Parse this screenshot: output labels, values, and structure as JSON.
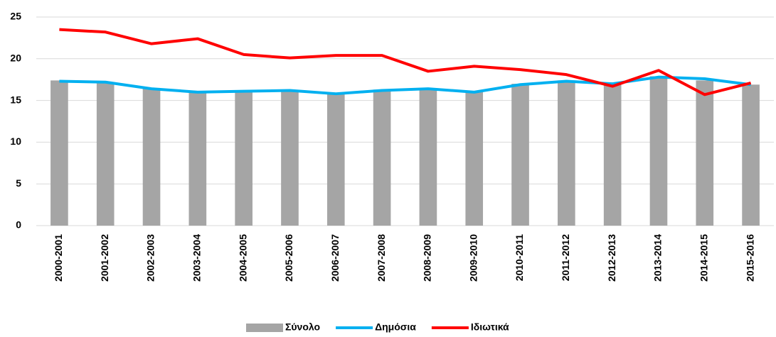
{
  "chart_data": {
    "type": "bar-line",
    "categories": [
      "2000-2001",
      "2001-2002",
      "2002-2003",
      "2003-2004",
      "2004-2005",
      "2005-2006",
      "2006-2007",
      "2007-2008",
      "2008-2009",
      "2009-2010",
      "2010-2011",
      "2011-2012",
      "2012-2013",
      "2013-2014",
      "2014-2015",
      "2015-2016"
    ],
    "series": [
      {
        "name": "Σύνολο",
        "type": "bar",
        "color": "#a5a5a5",
        "values": [
          17.4,
          17.2,
          16.5,
          16.1,
          16.1,
          16.2,
          15.9,
          16.3,
          16.4,
          16.1,
          17.0,
          17.4,
          17.1,
          17.9,
          17.4,
          16.9
        ]
      },
      {
        "name": "Δημόσια",
        "type": "line",
        "color": "#00b0f0",
        "values": [
          17.3,
          17.2,
          16.4,
          16.0,
          16.1,
          16.2,
          15.8,
          16.2,
          16.4,
          16.0,
          16.9,
          17.3,
          17.0,
          17.8,
          17.6,
          16.9
        ]
      },
      {
        "name": "Ιδιωτικά",
        "type": "line",
        "color": "#ff0000",
        "values": [
          23.5,
          23.2,
          21.8,
          22.4,
          20.5,
          20.1,
          20.4,
          20.4,
          18.5,
          19.1,
          18.7,
          18.1,
          16.7,
          18.6,
          15.7,
          17.1
        ]
      }
    ],
    "ylim": [
      0,
      25
    ],
    "yticks": [
      0,
      5,
      10,
      15,
      20,
      25
    ],
    "grid": true,
    "legend": "bottom"
  }
}
